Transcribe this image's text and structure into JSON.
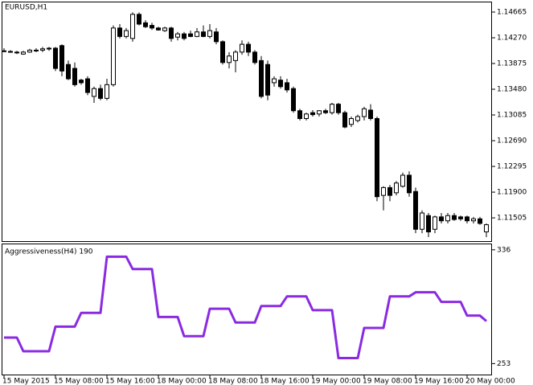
{
  "chart_data": [
    {
      "type": "candlestick",
      "title": "EURUSD,H1",
      "categories": [
        "15 May 2015",
        null,
        null,
        null,
        null,
        null,
        null,
        null,
        "15 May 08:00",
        null,
        null,
        null,
        null,
        null,
        null,
        null,
        "15 May 16:00",
        null,
        null,
        null,
        null,
        null,
        null,
        null,
        "18 May 00:00",
        null,
        null,
        null,
        null,
        null,
        null,
        null,
        "18 May 08:00",
        null,
        null,
        null,
        null,
        null,
        null,
        null,
        "18 May 16:00",
        null,
        null,
        null,
        null,
        null,
        null,
        null,
        "19 May 00:00",
        null,
        null,
        null,
        null,
        null,
        null,
        null,
        "19 May 08:00",
        null,
        null,
        null,
        null,
        null,
        null,
        null,
        "19 May 16:00",
        null,
        null,
        null,
        null,
        null,
        null,
        null,
        "20 May 00:00",
        null,
        null,
        null
      ],
      "open": [
        1.1407,
        1.1406,
        1.1404,
        1.1402,
        1.1405,
        1.1408,
        1.1408,
        1.141,
        1.1411,
        1.1415,
        1.1386,
        1.138,
        1.1362,
        1.1364,
        1.1337,
        1.1349,
        1.1334,
        1.1355,
        1.1442,
        1.1429,
        1.1426,
        1.1463,
        1.145,
        1.1446,
        1.1442,
        1.1438,
        1.1442,
        1.1428,
        1.1433,
        1.1433,
        1.1429,
        1.1436,
        1.1429,
        1.1436,
        1.1421,
        1.1389,
        1.1392,
        1.1405,
        1.1417,
        1.1405,
        1.1392,
        1.1386,
        1.1358,
        1.1362,
        1.1358,
        1.1349,
        1.1315,
        1.1303,
        1.1312,
        1.131,
        1.1315,
        1.1312,
        1.1325,
        1.1312,
        1.1294,
        1.13,
        1.1306,
        1.1316,
        1.1303,
        1.1185,
        1.1197,
        1.1189,
        1.1199,
        1.1216,
        1.1191,
        1.1133,
        1.1154,
        1.1133,
        1.1152,
        1.1146,
        1.1154,
        1.1152,
        1.1152,
        1.1146,
        1.1149,
        1.1129
      ],
      "high": [
        1.1411,
        1.1408,
        1.1407,
        1.1407,
        1.141,
        1.1411,
        1.1413,
        1.1413,
        1.1413,
        1.1417,
        1.1392,
        1.1389,
        1.1364,
        1.1368,
        1.1352,
        1.1355,
        1.1364,
        1.1446,
        1.1448,
        1.1442,
        1.1466,
        1.1466,
        1.1454,
        1.145,
        1.1444,
        1.1444,
        1.1444,
        1.1436,
        1.1436,
        1.1438,
        1.1442,
        1.1446,
        1.1448,
        1.1442,
        1.1423,
        1.1405,
        1.1408,
        1.1423,
        1.1421,
        1.1408,
        1.1399,
        1.1392,
        1.1368,
        1.1368,
        1.1364,
        1.1352,
        1.1318,
        1.1312,
        1.1316,
        1.1316,
        1.1318,
        1.1327,
        1.1327,
        1.1315,
        1.1306,
        1.1309,
        1.1321,
        1.1325,
        1.1306,
        1.1199,
        1.1201,
        1.1207,
        1.122,
        1.1222,
        1.1197,
        1.1162,
        1.1158,
        1.1154,
        1.1158,
        1.1158,
        1.1158,
        1.1154,
        1.1154,
        1.1152,
        1.1152,
        1.1142
      ],
      "low": [
        1.1405,
        1.1404,
        1.1402,
        1.1401,
        1.1404,
        1.1405,
        1.1405,
        1.1407,
        1.1376,
        1.1368,
        1.1362,
        1.1352,
        1.1355,
        1.1339,
        1.1327,
        1.1331,
        1.1331,
        1.1352,
        1.1426,
        1.1426,
        1.1421,
        1.1446,
        1.1442,
        1.1439,
        1.1438,
        1.1436,
        1.1421,
        1.1423,
        1.1423,
        1.1428,
        1.1428,
        1.1428,
        1.1426,
        1.1417,
        1.1386,
        1.138,
        1.1374,
        1.1401,
        1.1399,
        1.1386,
        1.1334,
        1.1331,
        1.1352,
        1.1349,
        1.1343,
        1.1312,
        1.13,
        1.13,
        1.1306,
        1.1306,
        1.131,
        1.1309,
        1.1309,
        1.1288,
        1.129,
        1.1297,
        1.13,
        1.13,
        1.1176,
        1.1162,
        1.1176,
        1.1185,
        1.1197,
        1.1183,
        1.1127,
        1.1127,
        1.1121,
        1.1127,
        1.1142,
        1.1142,
        1.1146,
        1.1146,
        1.1142,
        1.1142,
        1.114,
        1.1121
      ],
      "close": [
        1.1407,
        1.1406,
        1.1405,
        1.1405,
        1.1408,
        1.1408,
        1.141,
        1.1411,
        1.138,
        1.1376,
        1.1364,
        1.1355,
        1.1358,
        1.1343,
        1.1349,
        1.1334,
        1.1355,
        1.1442,
        1.1429,
        1.1438,
        1.1463,
        1.1448,
        1.1444,
        1.1442,
        1.1439,
        1.1442,
        1.1426,
        1.1433,
        1.1426,
        1.1429,
        1.1436,
        1.1429,
        1.1438,
        1.1421,
        1.1389,
        1.1399,
        1.1405,
        1.1417,
        1.1405,
        1.1389,
        1.1337,
        1.1339,
        1.1364,
        1.1352,
        1.1347,
        1.1315,
        1.1303,
        1.131,
        1.1309,
        1.1315,
        1.1312,
        1.1325,
        1.1312,
        1.129,
        1.1303,
        1.1306,
        1.1318,
        1.1303,
        1.1183,
        1.1197,
        1.1185,
        1.1204,
        1.1216,
        1.1189,
        1.1133,
        1.1158,
        1.1129,
        1.1152,
        1.1146,
        1.1154,
        1.1148,
        1.1149,
        1.1146,
        1.1149,
        1.1142,
        1.114
      ],
      "ylim": [
        1.11148,
        1.14813
      ],
      "yticks": [
        1.14665,
        {
          "value": 1.1427,
          "label": "1.14270"
        },
        1.13875,
        {
          "value": 1.1348,
          "label": "1.13480"
        },
        1.13085,
        {
          "value": 1.1269,
          "label": "1.12690"
        },
        1.12295,
        {
          "value": 1.119,
          "label": "1.11900"
        },
        1.11505
      ],
      "up_color": "#ffffff",
      "down_color": "#000000"
    },
    {
      "type": "line",
      "title": "Aggressiveness(H4) 190",
      "color": "#8a2be2",
      "values": [
        272,
        272,
        272,
        262,
        262,
        262,
        262,
        262,
        280,
        280,
        280,
        280,
        290,
        290,
        290,
        290,
        331,
        331,
        331,
        331,
        322,
        322,
        322,
        322,
        287,
        287,
        287,
        287,
        273,
        273,
        273,
        273,
        293,
        293,
        293,
        293,
        283,
        283,
        283,
        283,
        295,
        295,
        295,
        295,
        302,
        302,
        302,
        302,
        292,
        292,
        292,
        292,
        257,
        257,
        257,
        257,
        279,
        279,
        279,
        279,
        302,
        302,
        302,
        302,
        305,
        305,
        305,
        305,
        298,
        298,
        298,
        298,
        288,
        288,
        288,
        284
      ],
      "ylim": [
        245,
        340
      ],
      "yticks": [
        253,
        336
      ]
    }
  ]
}
